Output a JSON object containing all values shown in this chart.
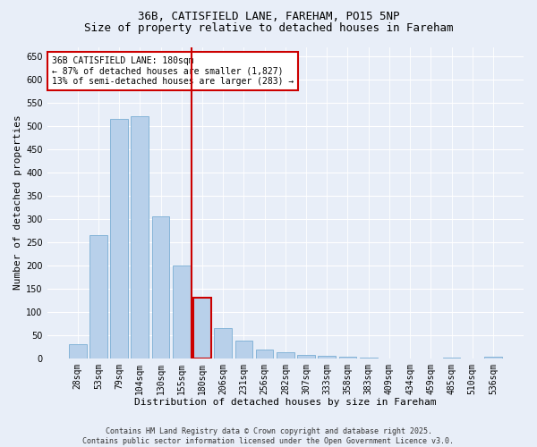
{
  "title1": "36B, CATISFIELD LANE, FAREHAM, PO15 5NP",
  "title2": "Size of property relative to detached houses in Fareham",
  "xlabel": "Distribution of detached houses by size in Fareham",
  "ylabel": "Number of detached properties",
  "categories": [
    "28sqm",
    "53sqm",
    "79sqm",
    "104sqm",
    "130sqm",
    "155sqm",
    "180sqm",
    "206sqm",
    "231sqm",
    "256sqm",
    "282sqm",
    "307sqm",
    "333sqm",
    "358sqm",
    "383sqm",
    "409sqm",
    "434sqm",
    "459sqm",
    "485sqm",
    "510sqm",
    "536sqm"
  ],
  "values": [
    30,
    265,
    515,
    520,
    305,
    200,
    130,
    65,
    38,
    18,
    13,
    7,
    5,
    3,
    1,
    0,
    0,
    0,
    1,
    0,
    3
  ],
  "bar_color": "#b8d0ea",
  "bar_edge_color": "#7aaed4",
  "highlight_index": 6,
  "highlight_color": "#cc0000",
  "ylim": [
    0,
    670
  ],
  "yticks": [
    0,
    50,
    100,
    150,
    200,
    250,
    300,
    350,
    400,
    450,
    500,
    550,
    600,
    650
  ],
  "annotation_title": "36B CATISFIELD LANE: 180sqm",
  "annotation_line1": "← 87% of detached houses are smaller (1,827)",
  "annotation_line2": "13% of semi-detached houses are larger (283) →",
  "annotation_box_color": "#ffffff",
  "annotation_box_edge": "#cc0000",
  "footer1": "Contains HM Land Registry data © Crown copyright and database right 2025.",
  "footer2": "Contains public sector information licensed under the Open Government Licence v3.0.",
  "background_color": "#e8eef8",
  "grid_color": "#ffffff",
  "title1_fontsize": 9,
  "title2_fontsize": 9,
  "xlabel_fontsize": 8,
  "ylabel_fontsize": 8,
  "tick_fontsize": 7,
  "annotation_fontsize": 7,
  "footer_fontsize": 6
}
